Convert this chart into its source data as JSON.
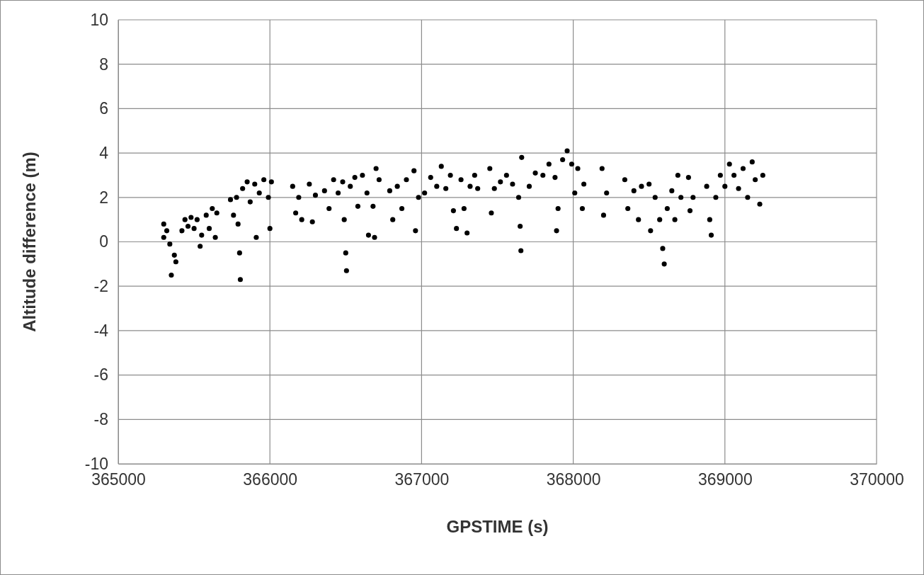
{
  "chart_data": {
    "type": "scatter",
    "xlabel": "GPSTIME (s)",
    "ylabel": "Altitude difference (m)",
    "xlim": [
      365000,
      370000
    ],
    "xticks": [
      365000,
      366000,
      367000,
      368000,
      369000,
      370000
    ],
    "ylim": [
      -10,
      10
    ],
    "yticks": [
      -10,
      -8,
      -6,
      -4,
      -2,
      0,
      2,
      4,
      6,
      8,
      10
    ],
    "grid": true,
    "marker": "circle",
    "series": [
      {
        "color": "#000000",
        "x": [
          365300,
          365300,
          365320,
          365340,
          365350,
          365370,
          365380,
          365420,
          365440,
          365460,
          365480,
          365500,
          365520,
          365540,
          365550,
          365580,
          365600,
          365620,
          365640,
          365650,
          365740,
          365760,
          365780,
          365790,
          365800,
          365805,
          365820,
          365850,
          365870,
          365900,
          365910,
          365930,
          365960,
          365990,
          366000,
          366010,
          366150,
          366170,
          366190,
          366210,
          366260,
          366280,
          366300,
          366360,
          366390,
          366420,
          366450,
          366480,
          366490,
          366500,
          366505,
          366530,
          366560,
          366580,
          366610,
          366640,
          366650,
          366680,
          366690,
          366700,
          366720,
          366790,
          366810,
          366840,
          366870,
          366900,
          366950,
          366960,
          366980,
          367020,
          367060,
          367100,
          367130,
          367160,
          367190,
          367210,
          367230,
          367260,
          367280,
          367300,
          367320,
          367350,
          367370,
          367450,
          367460,
          367480,
          367520,
          367560,
          367600,
          367640,
          367650,
          367655,
          367660,
          367710,
          367750,
          367800,
          367840,
          367880,
          367890,
          367900,
          367930,
          367960,
          367990,
          368010,
          368030,
          368060,
          368070,
          368190,
          368200,
          368220,
          368340,
          368360,
          368400,
          368430,
          368450,
          368500,
          368510,
          368540,
          368570,
          368590,
          368600,
          368620,
          368650,
          368670,
          368690,
          368710,
          368760,
          368770,
          368790,
          368880,
          368900,
          368910,
          368940,
          368970,
          369000,
          369030,
          369060,
          369090,
          369120,
          369150,
          369180,
          369200,
          369230,
          369250
        ],
        "values": [
          0.8,
          0.2,
          0.5,
          -0.1,
          -1.5,
          -0.6,
          -0.9,
          0.5,
          1.0,
          0.7,
          1.1,
          0.6,
          1.0,
          -0.2,
          0.3,
          1.2,
          0.6,
          1.5,
          0.2,
          1.3,
          1.9,
          1.2,
          2.0,
          0.8,
          -0.5,
          -1.7,
          2.4,
          2.7,
          1.8,
          2.6,
          0.2,
          2.2,
          2.8,
          2.0,
          0.6,
          2.7,
          2.5,
          1.3,
          2.0,
          1.0,
          2.6,
          0.9,
          2.1,
          2.3,
          1.5,
          2.8,
          2.2,
          2.7,
          1.0,
          -0.5,
          -1.3,
          2.5,
          2.9,
          1.6,
          3.0,
          2.2,
          0.3,
          1.6,
          0.2,
          3.3,
          2.8,
          2.3,
          1.0,
          2.5,
          1.5,
          2.8,
          3.2,
          0.5,
          2.0,
          2.2,
          2.9,
          2.5,
          3.4,
          2.4,
          3.0,
          1.4,
          0.6,
          2.8,
          1.5,
          0.4,
          2.5,
          3.0,
          2.4,
          3.3,
          1.3,
          2.4,
          2.7,
          3.0,
          2.6,
          2.0,
          0.7,
          -0.4,
          3.8,
          2.5,
          3.1,
          3.0,
          3.5,
          2.9,
          0.5,
          1.5,
          3.7,
          4.1,
          3.5,
          2.2,
          3.3,
          1.5,
          2.6,
          3.3,
          1.2,
          2.2,
          2.8,
          1.5,
          2.3,
          1.0,
          2.5,
          2.6,
          0.5,
          2.0,
          1.0,
          -0.3,
          -1.0,
          1.5,
          2.3,
          1.0,
          3.0,
          2.0,
          2.9,
          1.4,
          2.0,
          2.5,
          1.0,
          0.3,
          2.0,
          3.0,
          2.5,
          3.5,
          3.0,
          2.4,
          3.3,
          2.0,
          3.6,
          2.8,
          1.7,
          3.0
        ]
      }
    ]
  }
}
